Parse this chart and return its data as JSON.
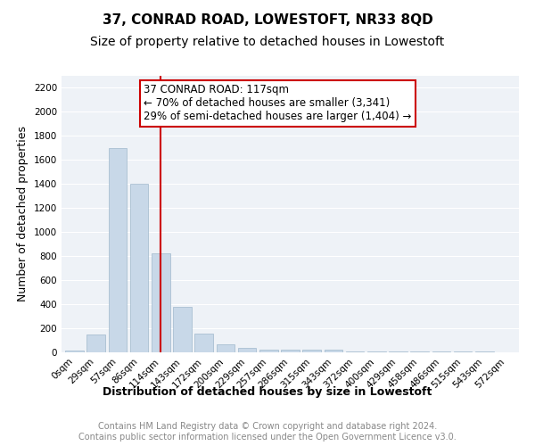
{
  "title": "37, CONRAD ROAD, LOWESTOFT, NR33 8QD",
  "subtitle": "Size of property relative to detached houses in Lowestoft",
  "xlabel": "Distribution of detached houses by size in Lowestoft",
  "ylabel": "Number of detached properties",
  "bar_values": [
    15,
    150,
    1700,
    1400,
    825,
    380,
    155,
    70,
    35,
    25,
    25,
    25,
    20,
    5,
    5,
    5,
    5,
    5,
    5,
    5,
    2
  ],
  "bar_labels": [
    "0sqm",
    "29sqm",
    "57sqm",
    "86sqm",
    "114sqm",
    "143sqm",
    "172sqm",
    "200sqm",
    "229sqm",
    "257sqm",
    "286sqm",
    "315sqm",
    "343sqm",
    "372sqm",
    "400sqm",
    "429sqm",
    "458sqm",
    "486sqm",
    "515sqm",
    "543sqm",
    "572sqm"
  ],
  "bar_color": "#c8d8e8",
  "bar_edgecolor": "#a0b8cc",
  "vline_x": 4.0,
  "vline_color": "#cc0000",
  "annotation_text": "37 CONRAD ROAD: 117sqm\n← 70% of detached houses are smaller (3,341)\n29% of semi-detached houses are larger (1,404) →",
  "annotation_box_color": "#ffffff",
  "annotation_box_edgecolor": "#cc0000",
  "ylim": [
    0,
    2300
  ],
  "yticks": [
    0,
    200,
    400,
    600,
    800,
    1000,
    1200,
    1400,
    1600,
    1800,
    2000,
    2200
  ],
  "background_color": "#eef2f7",
  "grid_color": "#ffffff",
  "footer_text": "Contains HM Land Registry data © Crown copyright and database right 2024.\nContains public sector information licensed under the Open Government Licence v3.0.",
  "title_fontsize": 11,
  "subtitle_fontsize": 10,
  "xlabel_fontsize": 9,
  "ylabel_fontsize": 9,
  "tick_fontsize": 7.5,
  "annotation_fontsize": 8.5,
  "footer_fontsize": 7
}
